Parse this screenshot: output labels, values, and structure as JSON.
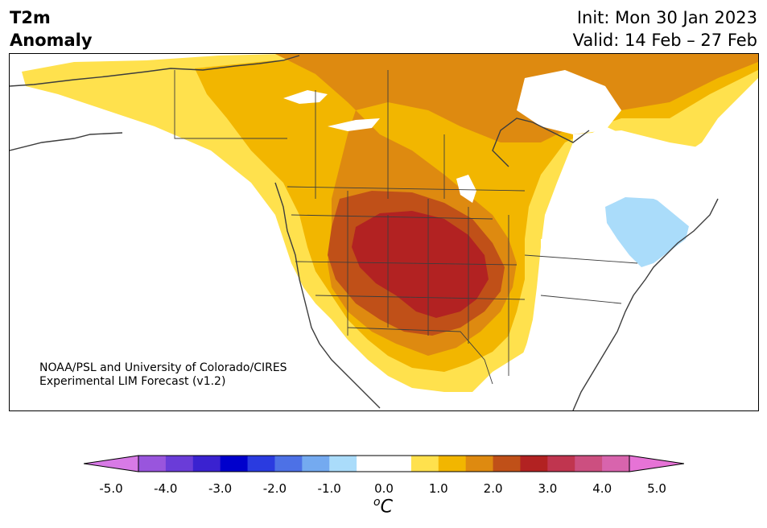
{
  "header": {
    "title_line1": "T2m",
    "title_line2": "Anomaly",
    "init": "Init: Mon 30 Jan 2023",
    "valid": "Valid: 14 Feb – 27 Feb"
  },
  "credit": {
    "line1": "NOAA/PSL and University of Colorado/CIRES",
    "line2": "Experimental LIM Forecast (v1.2)"
  },
  "colorbar": {
    "unit_sup": "o",
    "unit_letter": "C",
    "ticks": [
      "-5.0",
      "-4.0",
      "-3.0",
      "-2.0",
      "-1.0",
      "0.0",
      "1.0",
      "2.0",
      "3.0",
      "4.0",
      "5.0"
    ],
    "colors": [
      "#d87ae6",
      "#9955dd",
      "#6a3cd8",
      "#3a22d0",
      "#0000cc",
      "#2a3be0",
      "#4d71e6",
      "#74aaf0",
      "#aadcfa",
      "#ffffff",
      "#ffffff",
      "#ffe14d",
      "#f2b600",
      "#de8a10",
      "#c05018",
      "#b22222",
      "#c0354f",
      "#cc4f80",
      "#d864ad",
      "#e673d6"
    ]
  },
  "map": {
    "anomaly_colors": {
      "neutral": "#ffffff",
      "weak_warm": "#ffe14d",
      "warm": "#f2b600",
      "warmer": "#de8a10",
      "hot": "#c05018",
      "hottest": "#b22222",
      "cool": "#aadcfa"
    },
    "outline_color": "#3d3d3d"
  }
}
